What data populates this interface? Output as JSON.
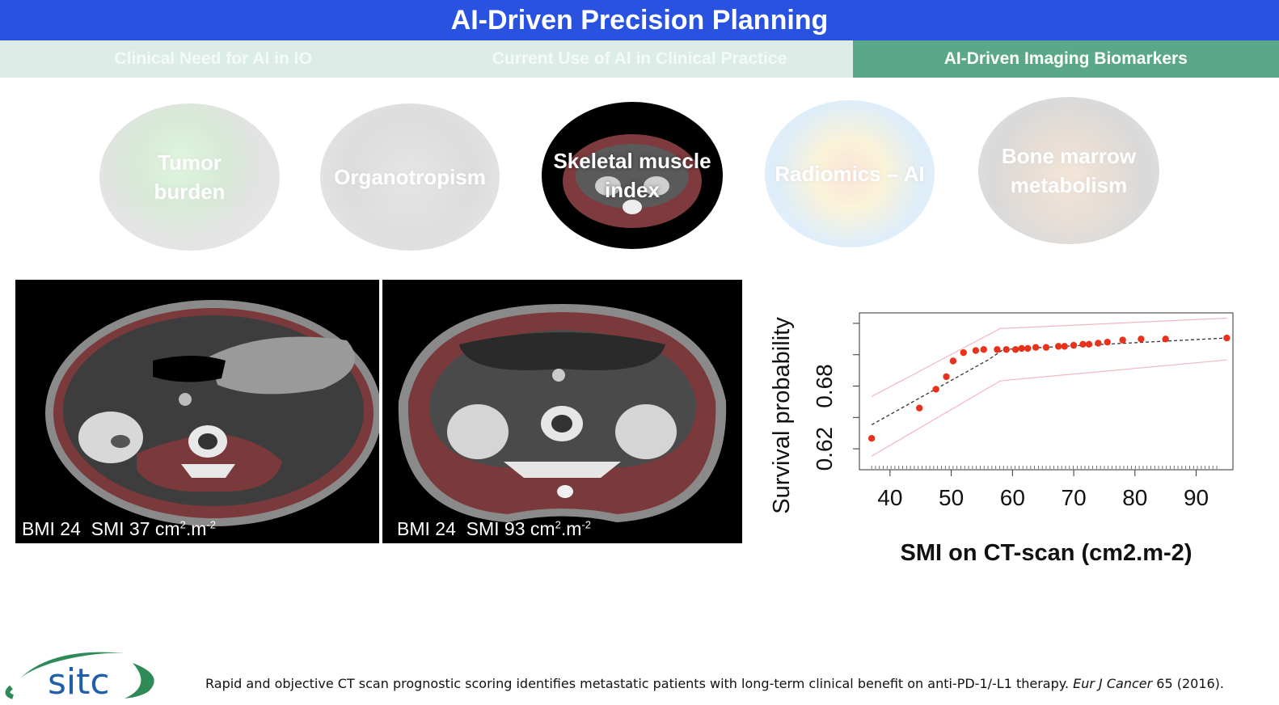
{
  "header": {
    "title": "AI-Driven Precision Planning"
  },
  "tabs": [
    {
      "label": "Clinical Need for AI in IO",
      "active": false
    },
    {
      "label": "Current Use of AI in Clinical Practice",
      "active": false
    },
    {
      "label": "AI-Driven Imaging Biomarkers",
      "active": true
    }
  ],
  "biomarkers": [
    {
      "label": "Tumor burden",
      "active": false
    },
    {
      "label": "Organotropism",
      "active": false
    },
    {
      "label": "Skeletal muscle index",
      "active": true
    },
    {
      "label": "Radiomics – AI",
      "active": false
    },
    {
      "label": "Bone marrow metabolism",
      "active": false
    }
  ],
  "ct_images": [
    {
      "bmi": "BMI 24",
      "smi": "SMI 37 cm",
      "unit_tail": ".m"
    },
    {
      "bmi": "BMI 24",
      "smi": "SMI 93 cm",
      "unit_tail": ".m"
    }
  ],
  "chart_data": {
    "type": "scatter",
    "xlabel": "SMI on CT-scan (cm2.m-2)",
    "ylabel": "Survival probability",
    "xlim": [
      35,
      96
    ],
    "ylim": [
      0.6,
      0.75
    ],
    "x_ticks": [
      40,
      50,
      60,
      70,
      80,
      90
    ],
    "y_tick_labels": [
      0.62,
      0.68
    ],
    "y_ticks": [
      0.62,
      0.65,
      0.68,
      0.71,
      0.74
    ],
    "points": [
      [
        37,
        0.63
      ],
      [
        44.8,
        0.659
      ],
      [
        47.5,
        0.677
      ],
      [
        49.2,
        0.689
      ],
      [
        50.3,
        0.704
      ],
      [
        52,
        0.712
      ],
      [
        54,
        0.714
      ],
      [
        55.3,
        0.715
      ],
      [
        57.5,
        0.715
      ],
      [
        59,
        0.715
      ],
      [
        60.5,
        0.715
      ],
      [
        61.5,
        0.716
      ],
      [
        62.5,
        0.716
      ],
      [
        63.8,
        0.717
      ],
      [
        65.5,
        0.717
      ],
      [
        67.5,
        0.718
      ],
      [
        68.5,
        0.718
      ],
      [
        70,
        0.719
      ],
      [
        71.5,
        0.72
      ],
      [
        72.5,
        0.72
      ],
      [
        74,
        0.721
      ],
      [
        75.5,
        0.722
      ],
      [
        78,
        0.724
      ],
      [
        81,
        0.725
      ],
      [
        85,
        0.725
      ],
      [
        95,
        0.726
      ]
    ],
    "fit_line": [
      [
        37,
        0.643
      ],
      [
        56,
        0.705
      ],
      [
        58.5,
        0.715
      ],
      [
        95,
        0.726
      ]
    ],
    "ci_upper": [
      [
        37,
        0.67
      ],
      [
        58,
        0.735
      ],
      [
        95,
        0.745
      ]
    ],
    "ci_lower": [
      [
        37,
        0.613
      ],
      [
        58,
        0.685
      ],
      [
        95,
        0.705
      ]
    ],
    "point_color": "#e8321c",
    "ci_color": "#f2b8c0"
  },
  "footer": {
    "reference_main": "Rapid and objective CT scan prognostic scoring identifies metastatic patients with long-term clinical benefit on anti-PD-1/-L1 therapy. ",
    "reference_journal": "Eur J Cancer",
    "reference_tail": " 65 (2016).",
    "logo_text": "sitc"
  },
  "colors": {
    "title_bar": "#2952e0",
    "tab_active": "#5aa889",
    "tab_inactive": "#dcede8",
    "muscle": "#8b3a3e"
  }
}
